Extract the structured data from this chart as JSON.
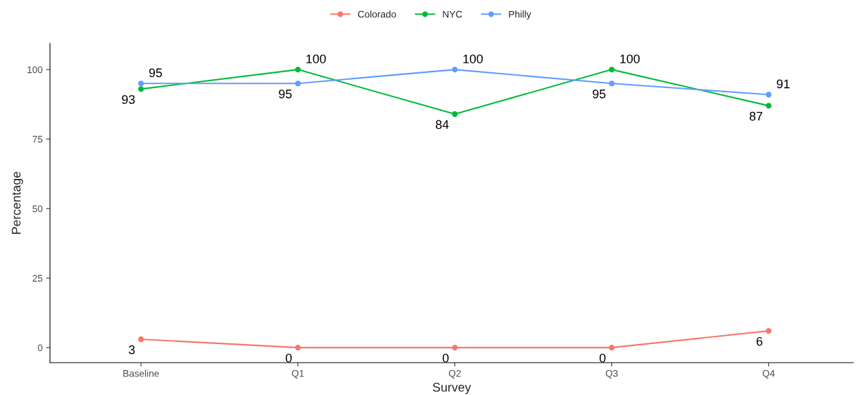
{
  "chart_data": {
    "type": "line",
    "xlabel": "Survey",
    "ylabel": "Percentage",
    "categories": [
      "Baseline",
      "Q1",
      "Q2",
      "Q3",
      "Q4"
    ],
    "series": [
      {
        "name": "Colorado",
        "color": "#f8766d",
        "values": [
          3,
          0,
          0,
          0,
          6
        ]
      },
      {
        "name": "NYC",
        "color": "#00ba38",
        "values": [
          93,
          100,
          84,
          100,
          87
        ]
      },
      {
        "name": "Philly",
        "color": "#619cff",
        "values": [
          95,
          95,
          100,
          95,
          91
        ]
      }
    ],
    "ylim": [
      -5.4,
      109.4
    ],
    "yticks": [
      0,
      25,
      50,
      75,
      100
    ],
    "marker": "circle",
    "line_style": "solid",
    "grid": false,
    "legend": "top",
    "data_labels": true
  }
}
